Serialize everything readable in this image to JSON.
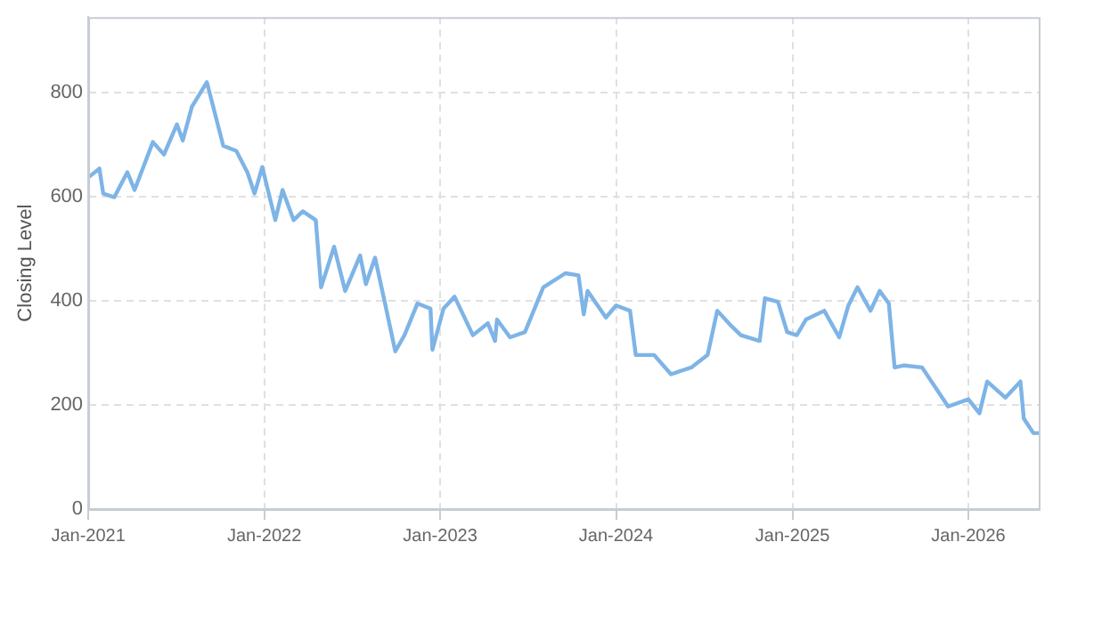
{
  "chart_data": {
    "type": "line",
    "ylabel": "Closing Level",
    "x": [
      "2021-01-01",
      "2021-01-24",
      "2021-02-01",
      "2021-02-24",
      "2021-03-23",
      "2021-04-07",
      "2021-05-15",
      "2021-06-07",
      "2021-07-04",
      "2021-07-16",
      "2021-08-04",
      "2021-09-04",
      "2021-10-08",
      "2021-11-04",
      "2021-11-27",
      "2021-12-12",
      "2021-12-28",
      "2022-01-24",
      "2022-02-08",
      "2022-03-03",
      "2022-03-22",
      "2022-04-18",
      "2022-04-29",
      "2022-05-26",
      "2022-06-18",
      "2022-07-19",
      "2022-07-31",
      "2022-08-19",
      "2022-09-07",
      "2022-09-30",
      "2022-10-19",
      "2022-11-15",
      "2022-12-12",
      "2022-12-16",
      "2023-01-08",
      "2023-01-31",
      "2023-03-10",
      "2023-04-10",
      "2023-04-25",
      "2023-04-29",
      "2023-05-26",
      "2023-06-26",
      "2023-08-03",
      "2023-09-18",
      "2023-10-15",
      "2023-10-26",
      "2023-11-03",
      "2023-12-11",
      "2024-01-01",
      "2024-01-30",
      "2024-02-11",
      "2024-03-20",
      "2024-04-24",
      "2024-06-05",
      "2024-07-09",
      "2024-07-29",
      "2024-08-28",
      "2024-09-16",
      "2024-10-25",
      "2024-11-05",
      "2024-12-02",
      "2024-12-21",
      "2025-01-10",
      "2025-01-29",
      "2025-03-08",
      "2025-04-08",
      "2025-04-27",
      "2025-05-16",
      "2025-06-12",
      "2025-07-01",
      "2025-07-20",
      "2025-08-01",
      "2025-08-20",
      "2025-09-27",
      "2025-11-20",
      "2026-01-01",
      "2026-01-24",
      "2026-02-09",
      "2026-03-19",
      "2026-04-19",
      "2026-04-26",
      "2026-05-16",
      "2026-05-27"
    ],
    "series": [
      {
        "color": "#7eb4e6",
        "values": [
          637,
          654,
          606,
          599,
          647,
          613,
          705,
          681,
          739,
          708,
          773,
          820,
          698,
          688,
          647,
          606,
          657,
          555,
          613,
          555,
          572,
          555,
          426,
          504,
          419,
          487,
          432,
          483,
          402,
          303,
          334,
          395,
          385,
          306,
          385,
          408,
          334,
          357,
          323,
          364,
          330,
          340,
          426,
          453,
          449,
          374,
          419,
          368,
          391,
          381,
          296,
          296,
          259,
          272,
          296,
          381,
          351,
          334,
          323,
          405,
          398,
          340,
          334,
          364,
          381,
          330,
          391,
          426,
          381,
          419,
          395,
          272,
          276,
          272,
          197,
          211,
          184,
          245,
          214,
          245,
          174,
          146,
          146
        ]
      }
    ],
    "xlim": [
      "2021-01-01",
      "2026-05-27"
    ],
    "xticks": [
      {
        "value": "2021-01-01",
        "label": "Jan-2021"
      },
      {
        "value": "2022-01-01",
        "label": "Jan-2022"
      },
      {
        "value": "2023-01-01",
        "label": "Jan-2023"
      },
      {
        "value": "2024-01-01",
        "label": "Jan-2024"
      },
      {
        "value": "2025-01-01",
        "label": "Jan-2025"
      },
      {
        "value": "2026-01-01",
        "label": "Jan-2026"
      }
    ],
    "ylim": [
      0,
      945
    ],
    "yticks": [
      0,
      200,
      400,
      600,
      800
    ],
    "grid": true,
    "legend": false,
    "marker": "none",
    "line_style": "solid"
  }
}
